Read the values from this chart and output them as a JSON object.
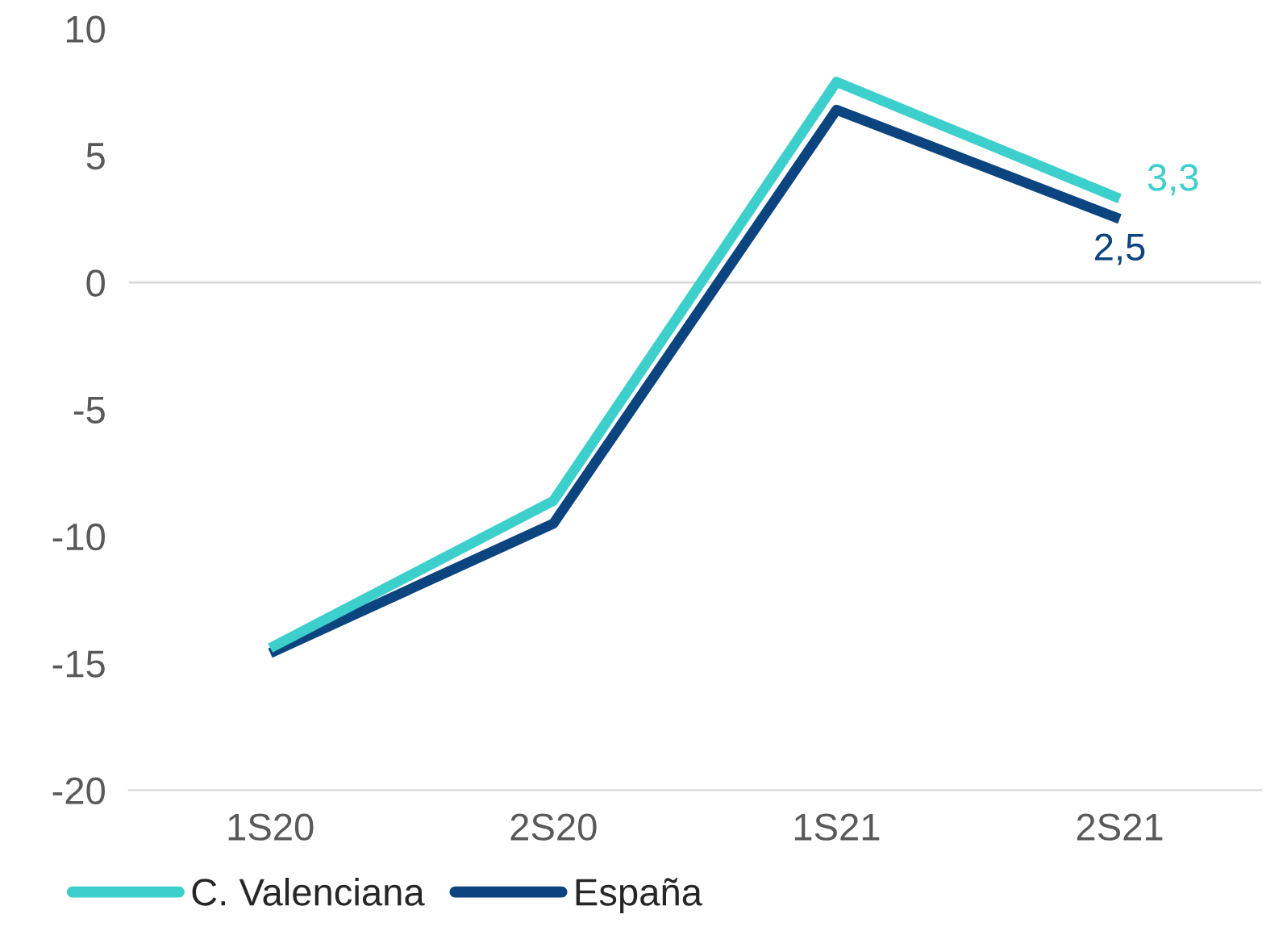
{
  "chart_data": {
    "type": "line",
    "categories": [
      "1S20",
      "2S20",
      "1S21",
      "2S21"
    ],
    "series": [
      {
        "name": "C. Valenciana",
        "color": "#3ccfcb",
        "values": [
          -14.4,
          -8.6,
          7.9,
          3.3
        ],
        "value_labels": [
          null,
          null,
          null,
          "3,3"
        ]
      },
      {
        "name": "España",
        "color": "#0c4480",
        "values": [
          -14.6,
          -9.5,
          6.8,
          2.5
        ],
        "value_labels": [
          null,
          null,
          null,
          "2,5"
        ]
      }
    ],
    "ylim": [
      -20,
      10
    ],
    "yticks": [
      -20,
      -15,
      -10,
      -5,
      0,
      5,
      10
    ],
    "grid": false,
    "legend": "bottom left",
    "marker": "none",
    "line_style": "solid",
    "ref_lines": [
      {
        "axis": "y",
        "value": 0,
        "color": "#d9d9d9"
      }
    ]
  }
}
